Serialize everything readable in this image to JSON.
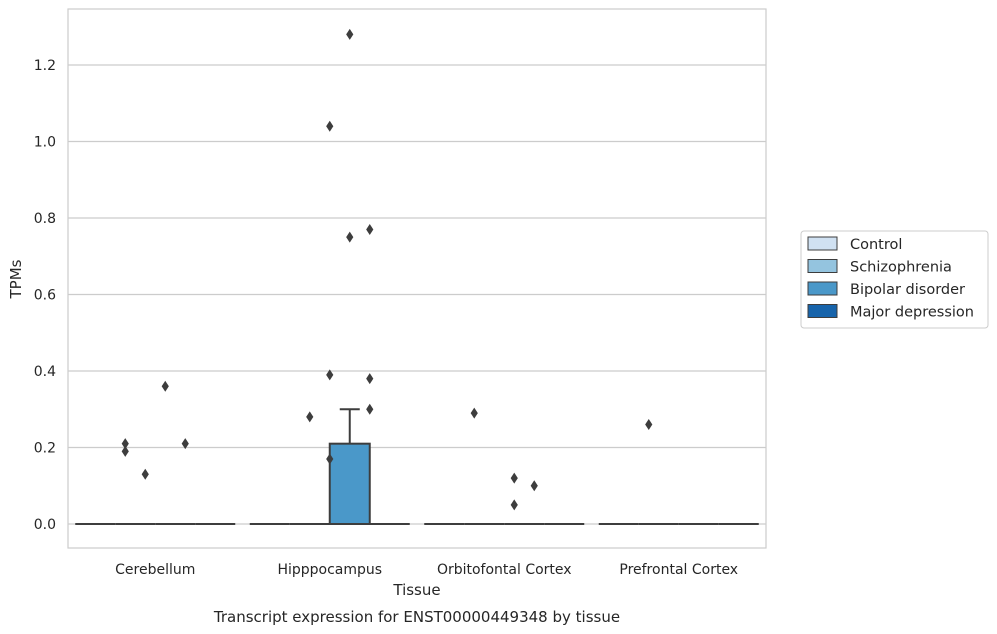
{
  "chart_data": {
    "type": "box",
    "title": "Transcript expression for ENST00000449348 by tissue",
    "xlabel": "Tissue",
    "ylabel": "TPMs",
    "ylim": [
      -0.065,
      1.35
    ],
    "yticks": [
      "0.0",
      "0.2",
      "0.4",
      "0.6",
      "0.8",
      "1.0",
      "1.2"
    ],
    "grid": true,
    "legend_position": "right",
    "categories": [
      "Cerebellum",
      "Hipppocampus",
      "Orbitofontal Cortex",
      "Prefrontal Cortex"
    ],
    "series": [
      {
        "name": "Control",
        "color": "#d0e1f2"
      },
      {
        "name": "Schizophrenia",
        "color": "#94c4df"
      },
      {
        "name": "Bipolar disorder",
        "color": "#4a98c9"
      },
      {
        "name": "Major depression",
        "color": "#1764ab"
      }
    ],
    "boxes": [
      {
        "category": "Cerebellum",
        "q1": 0,
        "median": 0,
        "q3": 0,
        "whisker_low": 0,
        "whisker_high": 0,
        "outliers": [
          {
            "x": -0.3,
            "y": 0.21
          },
          {
            "x": -0.3,
            "y": 0.19
          },
          {
            "x": -0.1,
            "y": 0.13
          },
          {
            "x": 0.1,
            "y": 0.36
          },
          {
            "x": 0.3,
            "y": 0.21
          }
        ]
      },
      {
        "category": "Hipppocampus",
        "q1": 0,
        "median": 0,
        "q3": 0.21,
        "whisker_low": 0,
        "whisker_high": 0.3,
        "outliers": [
          {
            "x": -0.2,
            "y": 0.28
          },
          {
            "x": 0.0,
            "y": 0.17
          },
          {
            "x": 0.0,
            "y": 0.39
          },
          {
            "x": 0.0,
            "y": 1.04
          },
          {
            "x": 0.2,
            "y": 0.75
          },
          {
            "x": 0.2,
            "y": 1.28
          },
          {
            "x": 0.4,
            "y": 0.77
          },
          {
            "x": 0.4,
            "y": 0.38
          },
          {
            "x": 0.4,
            "y": 0.3
          }
        ]
      },
      {
        "category": "Orbitofontal Cortex",
        "q1": 0,
        "median": 0,
        "q3": 0,
        "whisker_low": 0,
        "whisker_high": 0,
        "outliers": [
          {
            "x": -0.3,
            "y": 0.29
          },
          {
            "x": 0.1,
            "y": 0.12
          },
          {
            "x": 0.1,
            "y": 0.05
          },
          {
            "x": 0.3,
            "y": 0.1
          }
        ]
      },
      {
        "category": "Prefrontal Cortex",
        "q1": 0,
        "median": 0,
        "q3": 0,
        "whisker_low": 0,
        "whisker_high": 0,
        "outliers": [
          {
            "x": -0.3,
            "y": 0.26
          }
        ]
      }
    ]
  }
}
